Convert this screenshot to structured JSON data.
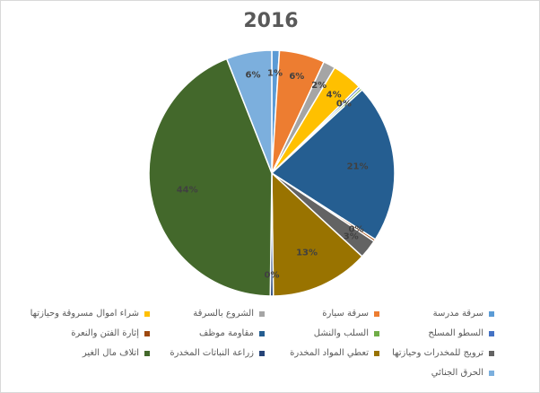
{
  "chart_data": {
    "type": "pie",
    "title": "2016",
    "slices": [
      {
        "label": "سرقة مدرسة",
        "value": 1,
        "data_label": "1%",
        "color": "#5b9bd5"
      },
      {
        "label": "سرقة سيارة",
        "value": 6,
        "data_label": "6%",
        "color": "#ed7d31"
      },
      {
        "label": "الشروع بالسرقة",
        "value": 1.6,
        "data_label": "2%",
        "color": "#a5a5a5"
      },
      {
        "label": "شراء اموال مسروقة وحيازتها",
        "value": 4,
        "data_label": "4%",
        "color": "#ffc000"
      },
      {
        "label": "السطو المسلح",
        "value": 0.3,
        "data_label": "0%",
        "color": "#4472c4"
      },
      {
        "label": "السلب والنشل",
        "value": 0.3,
        "data_label": "",
        "color": "#70ad47"
      },
      {
        "label": "مقاومة موظف",
        "value": 21,
        "data_label": "21%",
        "color": "#255e91"
      },
      {
        "label": "إثارة الفتن والنعرة",
        "value": 0.3,
        "data_label": "0%",
        "color": "#9e480e"
      },
      {
        "label": "ترويج للمخدرات وحيازتها",
        "value": 2.5,
        "data_label": "3%",
        "color": "#636363"
      },
      {
        "label": "تعطي المواد المخدرة",
        "value": 13,
        "data_label": "13%",
        "color": "#997300"
      },
      {
        "label": "زراعة النباتات المخدرة",
        "value": 0.4,
        "data_label": "0%",
        "color": "#264478"
      },
      {
        "label": "اتلاف مال الغير",
        "value": 44,
        "data_label": "44%",
        "color": "#43682b"
      },
      {
        "label": "الحرق الجنائي",
        "value": 6,
        "data_label": "6%",
        "color": "#7cafdd"
      }
    ],
    "legend_position": "bottom"
  }
}
